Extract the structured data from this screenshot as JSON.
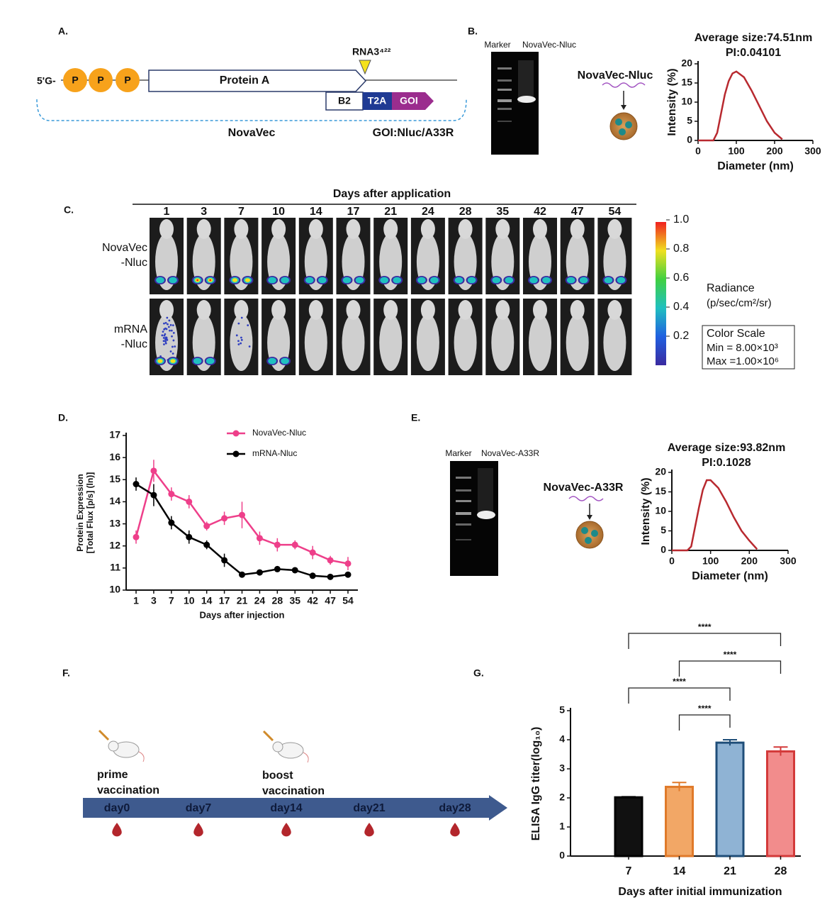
{
  "panels": {
    "A": {
      "letter": "A.",
      "cap": "5'G-",
      "caps": [
        "P",
        "P",
        "P"
      ],
      "gene": "Protein A",
      "site": "RNA3⁴²²",
      "sub": [
        "B2",
        "T2A",
        "GOI"
      ],
      "vector": "NovaVec",
      "goi": "GOI:Nluc/A33R"
    },
    "B": {
      "letter": "B.",
      "gel_lanes": [
        "Marker",
        "NovaVec-Nluc"
      ],
      "particle": "NovaVec-Nluc"
    },
    "C": {
      "letter": "C.",
      "header": "Days after application",
      "days": [
        "1",
        "3",
        "7",
        "10",
        "14",
        "17",
        "21",
        "24",
        "28",
        "35",
        "42",
        "47",
        "54"
      ],
      "rows": [
        [
          "NovaVec",
          "-Nluc"
        ],
        [
          "mRNA",
          "-Nluc"
        ]
      ],
      "colorbar": {
        "range": [
          0,
          1
        ],
        "ticks": [
          {
            "value": 1,
            "label": "1.0"
          },
          {
            "value": 0.8,
            "label": "0.8"
          },
          {
            "value": 0.6,
            "label": "0.6"
          },
          {
            "value": 0.4,
            "label": "0.4"
          },
          {
            "value": 0.2,
            "label": "0.2"
          }
        ],
        "title": "Radiance",
        "units": "(p/sec/cm²/sr)",
        "box": [
          "Color Scale",
          "Min = 8.00×10³",
          "Max =1.00×10⁶"
        ]
      }
    },
    "D": {
      "letter": "D."
    },
    "E": {
      "letter": "E.",
      "gel_lanes": [
        "Marker",
        "NovaVec-A33R"
      ],
      "particle": "NovaVec-A33R"
    },
    "F": {
      "letter": "F.",
      "days": [
        "day0",
        "day7",
        "day14",
        "day21",
        "day28"
      ],
      "events": [
        [
          "prime",
          "vaccination"
        ],
        [
          "boost",
          "vaccination"
        ]
      ]
    },
    "G": {
      "letter": "G."
    }
  },
  "chart_data": [
    {
      "type": "line",
      "title": "Average size:74.51nm",
      "subtitle": "PI:0.04101",
      "xlabel": "Diameter (nm)",
      "ylabel": "Intensity (%)",
      "x": [
        0,
        40,
        50,
        60,
        70,
        80,
        90,
        100,
        120,
        140,
        160,
        180,
        200,
        220
      ],
      "values": [
        0,
        0,
        2,
        7,
        12,
        15.5,
        17.5,
        18,
        16.5,
        13,
        9,
        5,
        2,
        0.3
      ],
      "color": "#b8292f",
      "xlim": [
        0,
        300
      ],
      "xticks": [
        0,
        100,
        200,
        300
      ],
      "ylim": [
        0,
        20
      ],
      "yticks": [
        0,
        5,
        10,
        15,
        20
      ]
    },
    {
      "type": "line",
      "xlabel": "Days after injection",
      "ylabel": [
        "Protein Expression",
        "[Total Flux [p/s] (ln)]"
      ],
      "categories": [
        "1",
        "3",
        "7",
        "10",
        "14",
        "17",
        "21",
        "24",
        "28",
        "35",
        "42",
        "47",
        "54"
      ],
      "series": [
        {
          "name": "NovaVec-Nluc",
          "color": "#ee3f8a",
          "values": [
            12.4,
            15.4,
            14.35,
            14.0,
            12.9,
            13.25,
            13.4,
            12.35,
            12.05,
            12.05,
            11.7,
            11.35,
            11.2
          ],
          "errors": [
            0.3,
            0.5,
            0.3,
            0.3,
            0.2,
            0.3,
            0.6,
            0.3,
            0.3,
            0.2,
            0.3,
            0.2,
            0.3
          ]
        },
        {
          "name": "mRNA-Nluc",
          "color": "#000000",
          "values": [
            14.8,
            14.3,
            13.05,
            12.4,
            12.05,
            11.35,
            10.7,
            10.8,
            10.95,
            10.9,
            10.65,
            10.6,
            10.7
          ],
          "errors": [
            0.3,
            0.5,
            0.3,
            0.3,
            0.2,
            0.3,
            0.1,
            0.1,
            0.1,
            0.1,
            0.1,
            0.1,
            0.1
          ]
        }
      ],
      "ylim": [
        10,
        17
      ],
      "yticks": [
        10,
        11,
        12,
        13,
        14,
        15,
        16,
        17
      ]
    },
    {
      "type": "line",
      "title": "Average size:93.82nm",
      "subtitle": "PI:0.1028",
      "xlabel": "Diameter (nm)",
      "ylabel": "Intensity (%)",
      "x": [
        0,
        40,
        50,
        60,
        70,
        80,
        90,
        100,
        120,
        140,
        160,
        180,
        200,
        220
      ],
      "values": [
        0,
        0,
        1,
        6,
        11,
        15.5,
        18,
        18,
        16,
        12.5,
        8.5,
        5,
        2.5,
        0.3
      ],
      "color": "#b8292f",
      "xlim": [
        0,
        300
      ],
      "xticks": [
        0,
        100,
        200,
        300
      ],
      "ylim": [
        0,
        20
      ],
      "yticks": [
        0,
        5,
        10,
        15,
        20
      ]
    },
    {
      "type": "bar",
      "xlabel": "Days after initial immunization",
      "ylabel": "ELISA IgG titer(log₁₀)",
      "categories": [
        "7",
        "14",
        "21",
        "28"
      ],
      "values": [
        2.02,
        2.38,
        3.9,
        3.6
      ],
      "errors": [
        0.02,
        0.15,
        0.1,
        0.15
      ],
      "colors": [
        "#111111",
        "#f2a766",
        "#8fb3d4",
        "#f28c8c"
      ],
      "edge_colors": [
        "#000000",
        "#e07a2a",
        "#1f4e79",
        "#d33a3a"
      ],
      "ylim": [
        0,
        5
      ],
      "yticks": [
        0,
        1,
        2,
        3,
        4,
        5
      ],
      "annotations": [
        {
          "between": [
            "7",
            "28"
          ],
          "label": "****"
        },
        {
          "between": [
            "14",
            "28"
          ],
          "label": "****"
        },
        {
          "between": [
            "7",
            "21"
          ],
          "label": "****"
        },
        {
          "between": [
            "14",
            "21"
          ],
          "label": "****"
        }
      ]
    }
  ]
}
